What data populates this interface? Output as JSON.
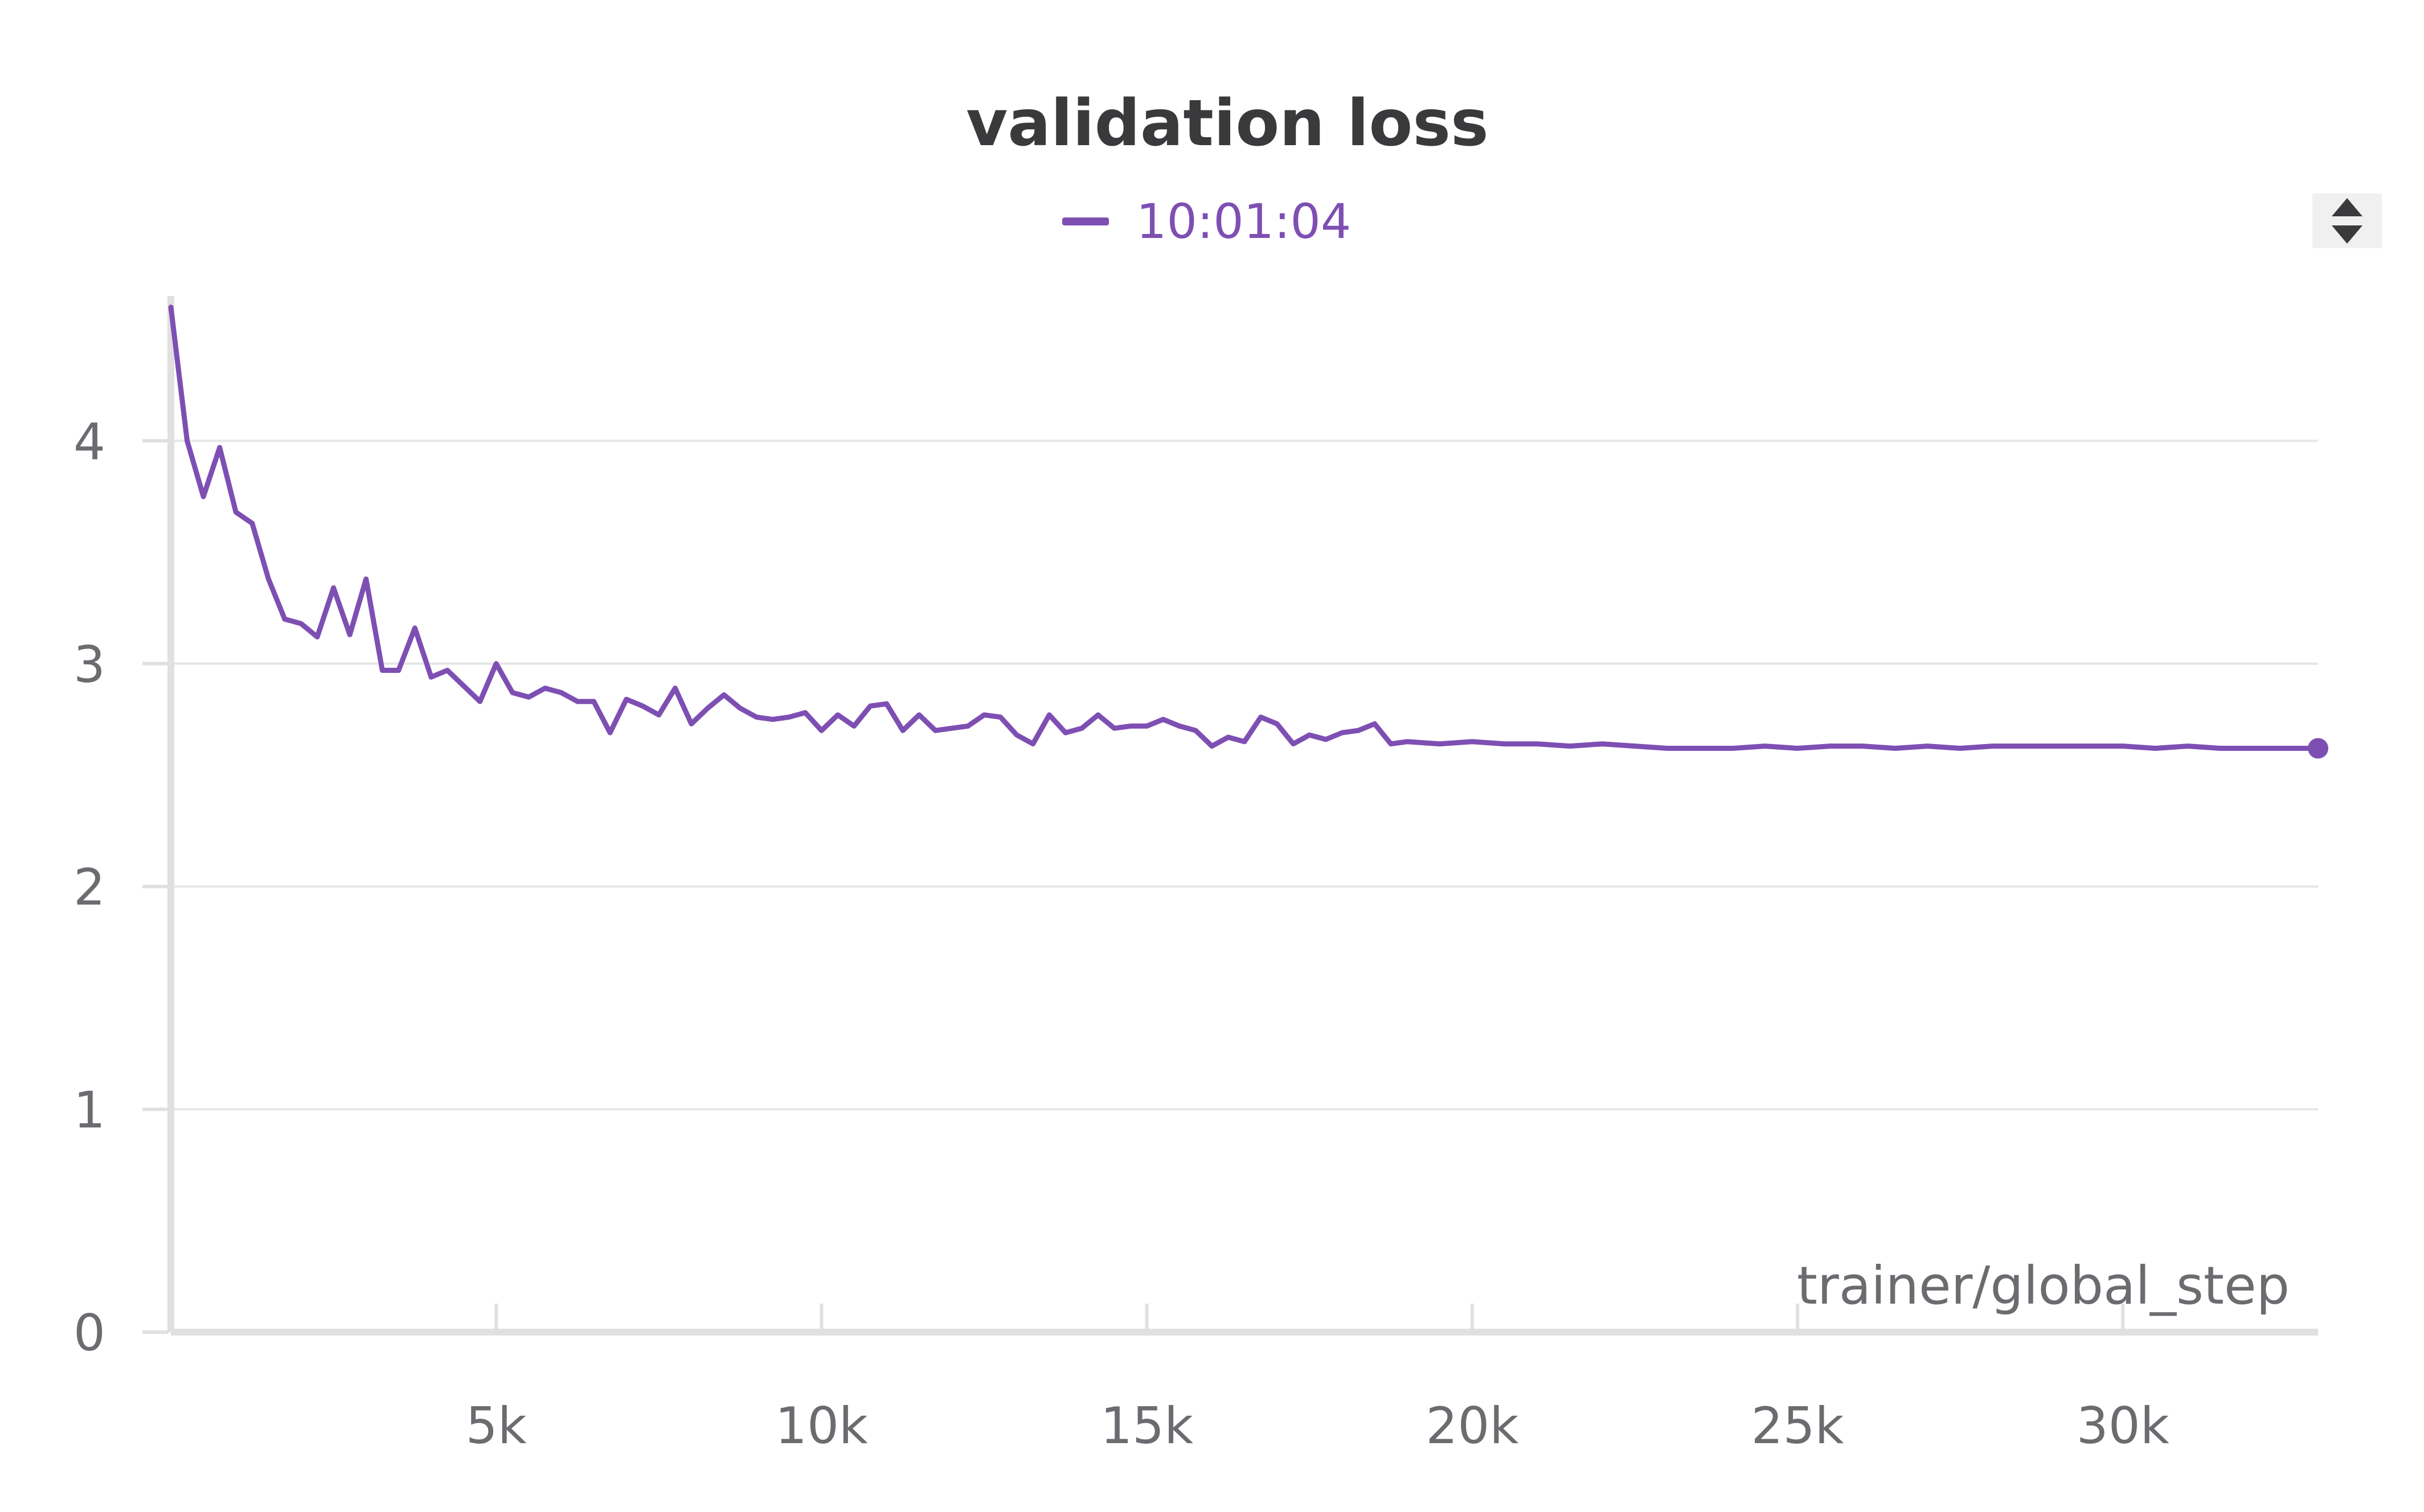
{
  "chart_data": {
    "type": "line",
    "title": "validation loss",
    "xlabel": "trainer/global_step",
    "ylabel": "",
    "xlim": [
      0,
      33000
    ],
    "ylim": [
      0,
      4.65
    ],
    "x_ticks": [
      5000,
      10000,
      15000,
      20000,
      25000,
      30000
    ],
    "x_tick_labels": [
      "5k",
      "10k",
      "15k",
      "20k",
      "25k",
      "30k"
    ],
    "y_ticks": [
      0,
      1,
      2,
      3,
      4
    ],
    "y_tick_labels": [
      "0",
      "1",
      "2",
      "3",
      "4"
    ],
    "grid": "horizontal",
    "legend": "top-center",
    "colors": {
      "series": "#7e4fb3",
      "grid": "#e6e6e6",
      "axis": "#e0e0e0"
    },
    "series": [
      {
        "name": "10:01:04",
        "color": "#7e4fb3",
        "x": [
          0,
          250,
          500,
          750,
          1000,
          1250,
          1500,
          1750,
          2000,
          2250,
          2500,
          2750,
          3000,
          3250,
          3500,
          3750,
          4000,
          4250,
          4500,
          4750,
          5000,
          5250,
          5500,
          5750,
          6000,
          6250,
          6500,
          6750,
          7000,
          7250,
          7500,
          7750,
          8000,
          8250,
          8500,
          8750,
          9000,
          9250,
          9500,
          9750,
          10000,
          10250,
          10500,
          10750,
          11000,
          11250,
          11500,
          11750,
          12000,
          12250,
          12500,
          12750,
          13000,
          13250,
          13500,
          13750,
          14000,
          14250,
          14500,
          14750,
          15000,
          15250,
          15500,
          15750,
          16000,
          16250,
          16500,
          16750,
          17000,
          17250,
          17500,
          17750,
          18000,
          18250,
          18500,
          18750,
          19000,
          19500,
          20000,
          20500,
          21000,
          21500,
          22000,
          22500,
          23000,
          23500,
          24000,
          24500,
          25000,
          25500,
          26000,
          26500,
          27000,
          27500,
          28000,
          28500,
          29000,
          29500,
          30000,
          30500,
          31000,
          31500,
          32000,
          32500,
          33000
        ],
        "y": [
          4.6,
          4.0,
          3.75,
          3.97,
          3.68,
          3.63,
          3.38,
          3.2,
          3.18,
          3.12,
          3.34,
          3.13,
          3.38,
          2.97,
          2.97,
          3.16,
          2.94,
          2.97,
          2.9,
          2.83,
          3.0,
          2.87,
          2.85,
          2.89,
          2.87,
          2.83,
          2.83,
          2.69,
          2.84,
          2.81,
          2.77,
          2.89,
          2.73,
          2.8,
          2.86,
          2.8,
          2.76,
          2.75,
          2.76,
          2.78,
          2.7,
          2.77,
          2.72,
          2.81,
          2.82,
          2.7,
          2.77,
          2.7,
          2.71,
          2.72,
          2.77,
          2.76,
          2.68,
          2.64,
          2.77,
          2.69,
          2.71,
          2.77,
          2.71,
          2.72,
          2.72,
          2.75,
          2.72,
          2.7,
          2.63,
          2.67,
          2.65,
          2.76,
          2.73,
          2.64,
          2.68,
          2.66,
          2.69,
          2.7,
          2.73,
          2.64,
          2.65,
          2.64,
          2.65,
          2.64,
          2.64,
          2.63,
          2.64,
          2.63,
          2.62,
          2.62,
          2.62,
          2.63,
          2.62,
          2.63,
          2.63,
          2.62,
          2.63,
          2.62,
          2.63,
          2.63,
          2.63,
          2.63,
          2.63,
          2.62,
          2.63,
          2.62,
          2.62,
          2.62,
          2.62
        ]
      }
    ]
  },
  "controls": {
    "scroll_icon": "up-down-chevron-icon"
  }
}
